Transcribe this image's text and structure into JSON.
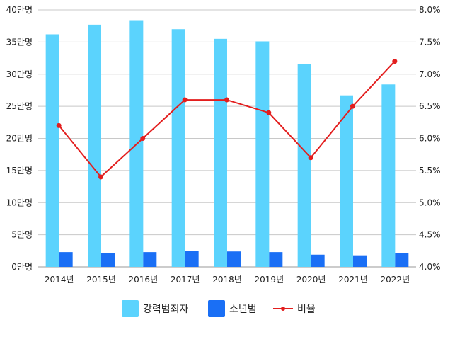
{
  "chart_data": {
    "type": "bar+line",
    "categories": [
      "2014년",
      "2015년",
      "2016년",
      "2017년",
      "2018년",
      "2019년",
      "2020년",
      "2021년",
      "2022년"
    ],
    "series": [
      {
        "name": "강력범죄자",
        "type": "bar",
        "axis": "left",
        "color": "#5bd3fd",
        "values": [
          36.2,
          37.7,
          38.4,
          37.0,
          35.5,
          35.1,
          31.6,
          26.7,
          28.4
        ]
      },
      {
        "name": "소년범",
        "type": "bar",
        "axis": "left",
        "color": "#1a6ff5",
        "values": [
          2.3,
          2.1,
          2.3,
          2.5,
          2.4,
          2.3,
          1.9,
          1.8,
          2.1
        ]
      },
      {
        "name": "비율",
        "type": "line",
        "axis": "right",
        "color": "#e31e1e",
        "values": [
          6.2,
          5.4,
          6.0,
          6.6,
          6.6,
          6.4,
          5.7,
          6.5,
          7.2
        ]
      }
    ],
    "y_left": {
      "min": 0,
      "max": 40,
      "step": 5,
      "ticks": [
        "0만명",
        "5만명",
        "10만명",
        "15만명",
        "20만명",
        "25만명",
        "30만명",
        "35만명",
        "40만명"
      ]
    },
    "y_right": {
      "min": 4.0,
      "max": 8.0,
      "step": 0.5,
      "ticks": [
        "4.0%",
        "4.5%",
        "5.0%",
        "5.5%",
        "6.0%",
        "6.5%",
        "7.0%",
        "7.5%",
        "8.0%"
      ]
    },
    "grid": true,
    "legend": "bottom"
  }
}
